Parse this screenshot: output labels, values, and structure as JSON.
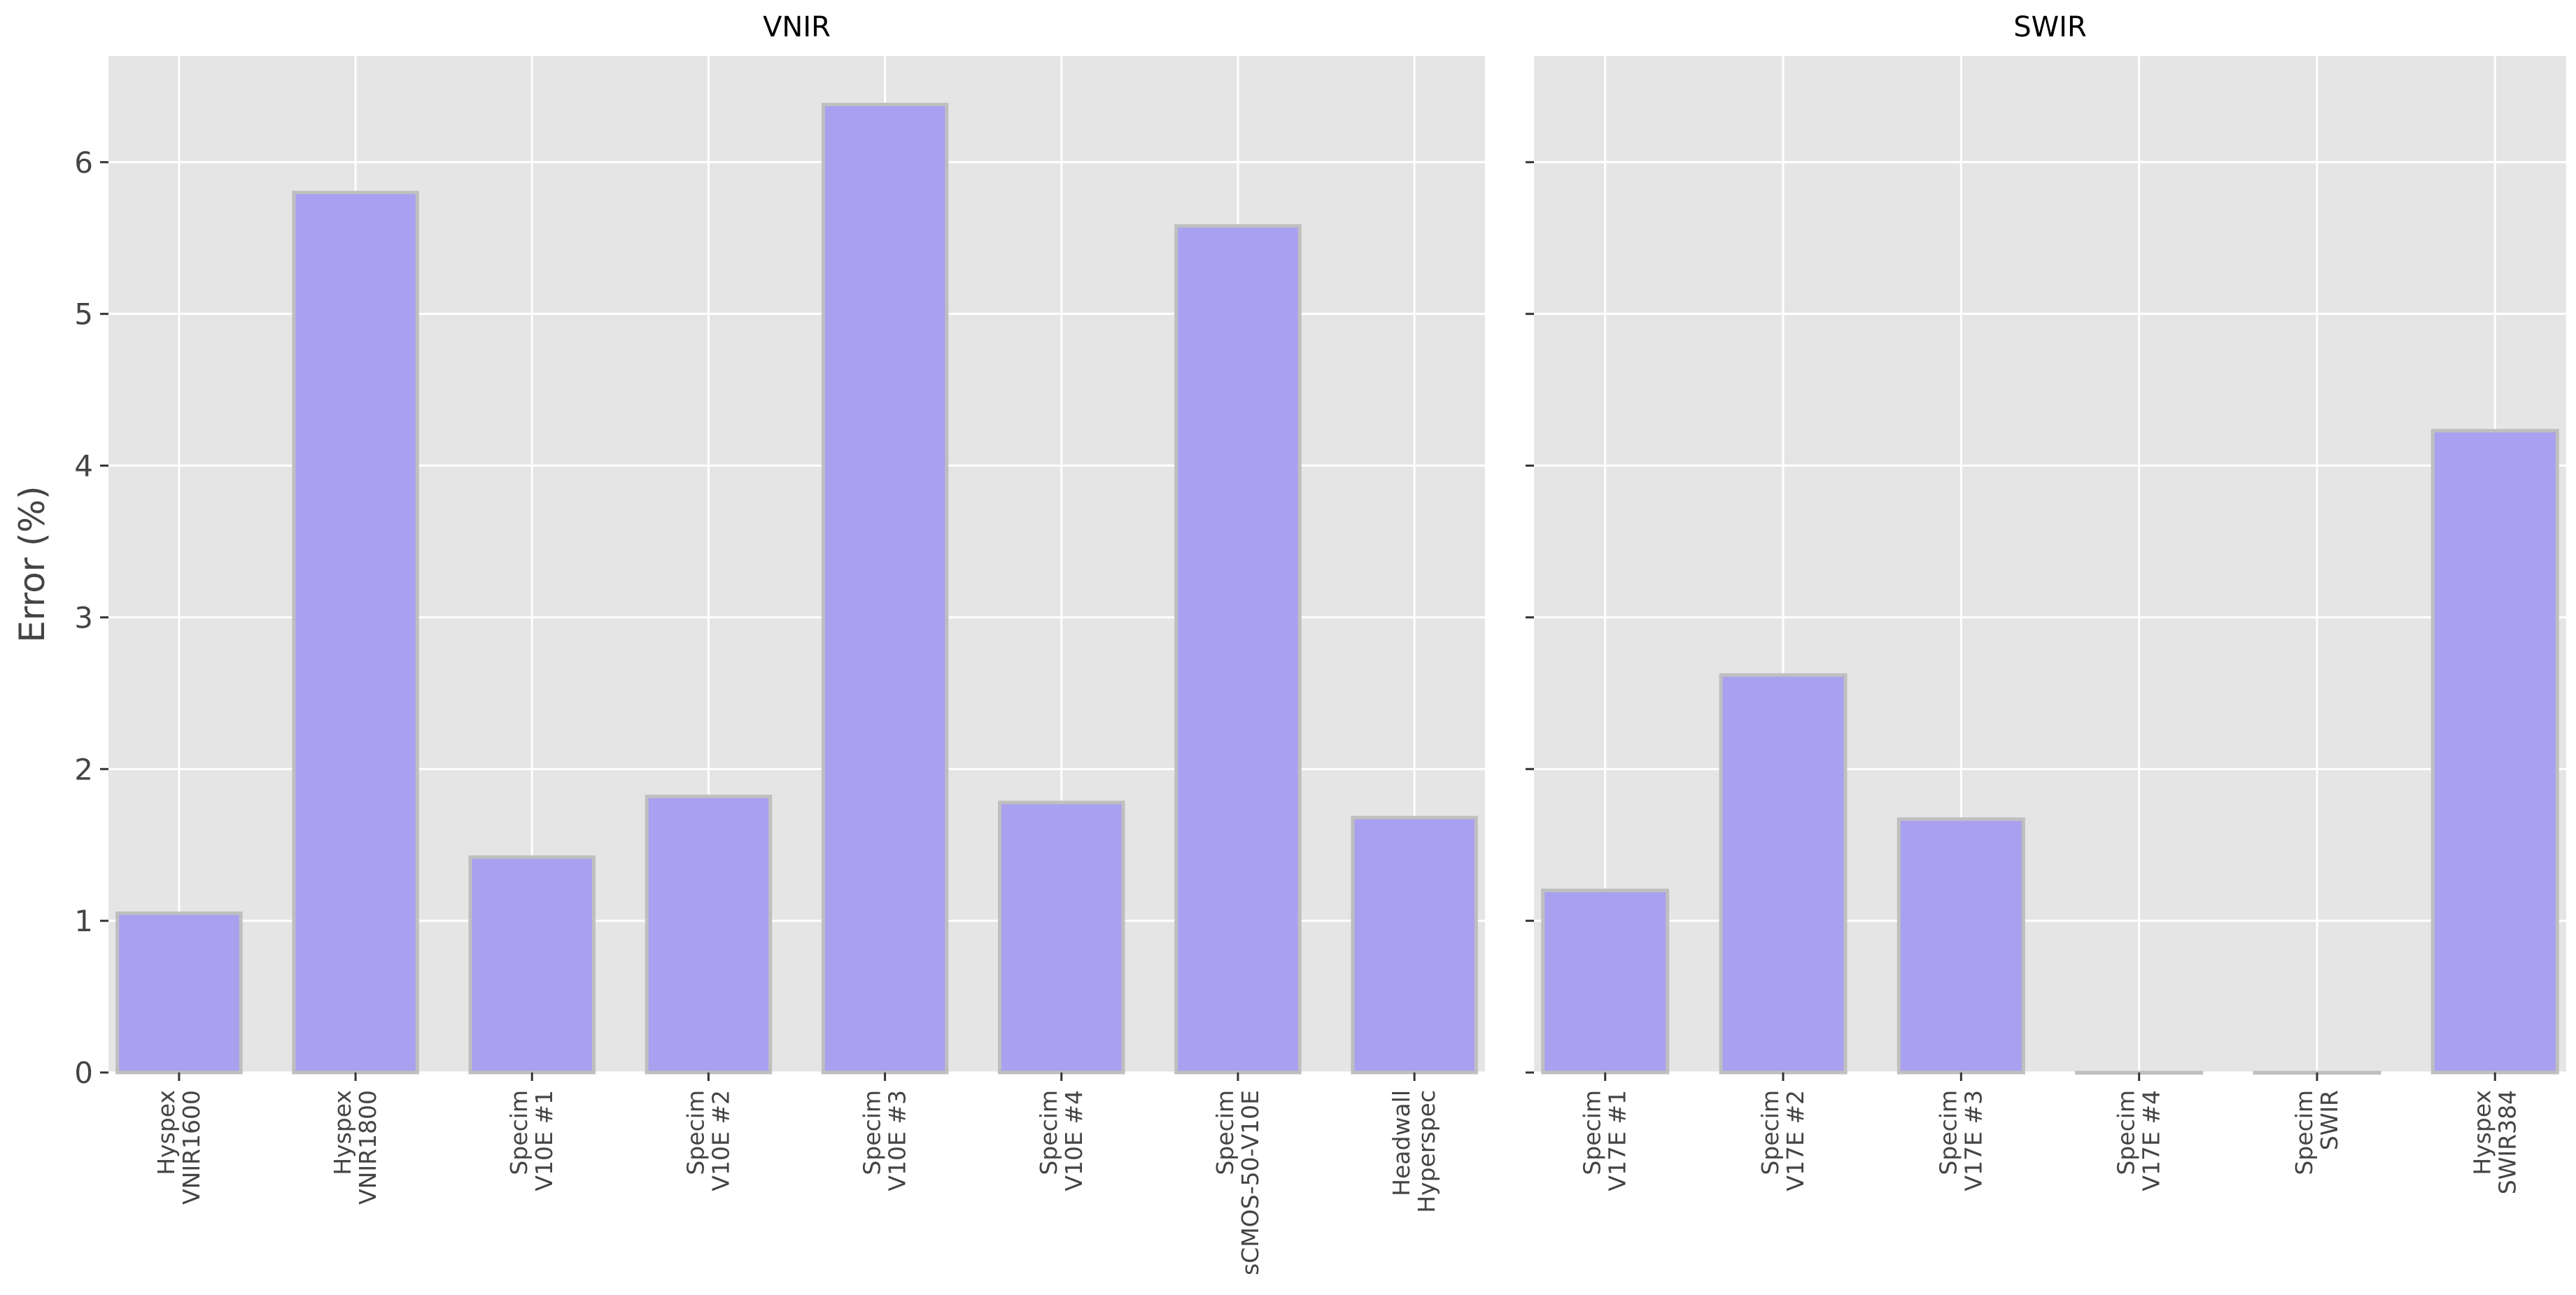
{
  "chart_data": [
    {
      "type": "bar",
      "title": "VNIR",
      "ylabel": "Error (%)",
      "ylim": [
        0,
        6.7
      ],
      "yticks": [
        0,
        1,
        2,
        3,
        4,
        5,
        6
      ],
      "grid": true,
      "bar_color": "#a9a0f0",
      "bar_edge_color": "#bfbfbf",
      "background_color": "#e5e5e5",
      "categories": [
        [
          "Hyspex",
          "VNIR1600"
        ],
        [
          "Hyspex",
          "VNIR1800"
        ],
        [
          "Specim",
          "V10E #1"
        ],
        [
          "Specim",
          "V10E #2"
        ],
        [
          "Specim",
          "V10E #3"
        ],
        [
          "Specim",
          "V10E #4"
        ],
        [
          "Specim",
          "sCMOS-50-V10E"
        ],
        [
          "Headwall",
          "Hyperspec"
        ]
      ],
      "values": [
        1.05,
        5.8,
        1.42,
        1.82,
        6.38,
        1.78,
        5.58,
        1.68
      ]
    },
    {
      "type": "bar",
      "title": "SWIR",
      "ylim": [
        0,
        6.7
      ],
      "yticks": [
        0,
        1,
        2,
        3,
        4,
        5,
        6
      ],
      "grid": true,
      "bar_color": "#a9a0f0",
      "bar_edge_color": "#bfbfbf",
      "background_color": "#e5e5e5",
      "categories": [
        [
          "Specim",
          "V17E #1"
        ],
        [
          "Specim",
          "V17E #2"
        ],
        [
          "Specim",
          "V17E #3"
        ],
        [
          "Specim",
          "V17E #4"
        ],
        [
          "Specim",
          "SWIR"
        ],
        [
          "Hyspex",
          "SWIR384"
        ]
      ],
      "values": [
        1.2,
        2.62,
        1.67,
        0,
        0,
        4.23
      ]
    }
  ]
}
